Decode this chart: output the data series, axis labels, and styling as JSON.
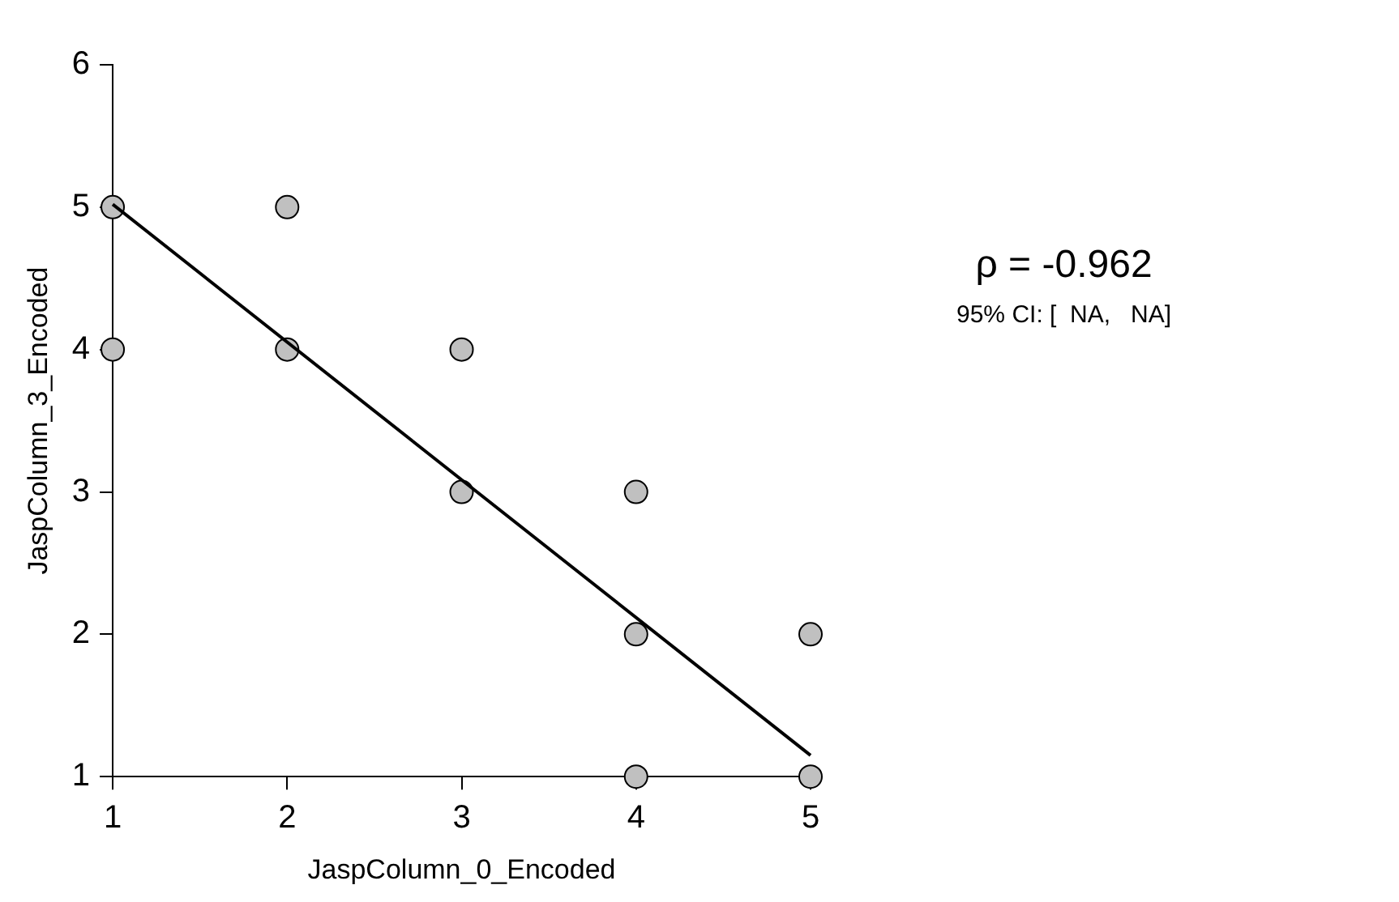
{
  "chart_data": {
    "type": "scatter",
    "xlabel": "JaspColumn_0_Encoded",
    "ylabel": "JaspColumn_3_Encoded",
    "xlim": [
      1,
      5
    ],
    "ylim": [
      1,
      6
    ],
    "xticks": [
      1,
      2,
      3,
      4,
      5
    ],
    "yticks": [
      1,
      2,
      3,
      4,
      5,
      6
    ],
    "grid": false,
    "legend": false,
    "annotations": [
      "ρ = -0.962",
      "95% CI: [  NA,   NA]"
    ],
    "series": [
      {
        "type": "scatter",
        "color": "#c0c0c0",
        "marker": "circle",
        "x": [
          1,
          1,
          2,
          2,
          3,
          3,
          4,
          4,
          4,
          5,
          5
        ],
        "values": [
          5,
          4,
          5,
          4,
          4,
          3,
          3,
          2,
          1,
          2,
          1
        ]
      },
      {
        "type": "line",
        "color": "#000000",
        "marker": "none",
        "x": [
          1,
          5
        ],
        "values": [
          5.02,
          1.15
        ]
      }
    ]
  }
}
